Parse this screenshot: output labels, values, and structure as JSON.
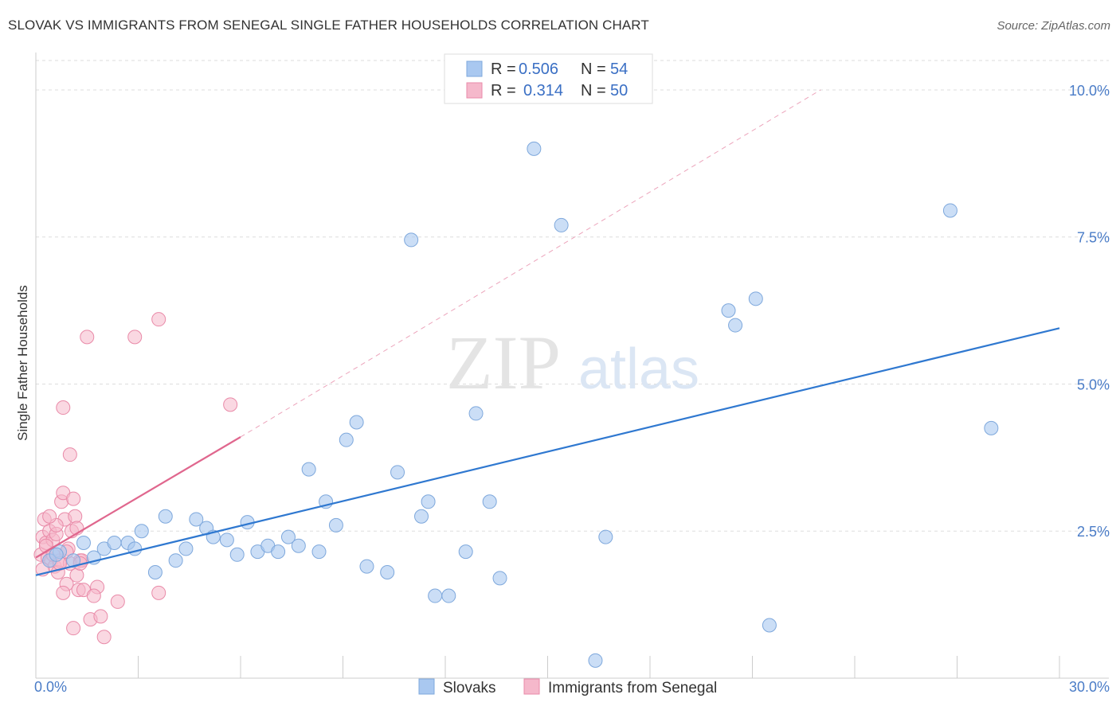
{
  "header": {
    "title": "SLOVAK VS IMMIGRANTS FROM SENEGAL SINGLE FATHER HOUSEHOLDS CORRELATION CHART",
    "source": "Source: ZipAtlas.com"
  },
  "watermark": {
    "zip": "ZIP",
    "atlas": "atlas"
  },
  "legend_top": [
    {
      "r_label": "R =",
      "r_value": "0.506",
      "n_label": "N =",
      "n_value": "54",
      "color": "#a9c8f0"
    },
    {
      "r_label": "R =",
      "r_value": "0.314",
      "n_label": "N =",
      "n_value": "50",
      "color": "#f5b8cb"
    }
  ],
  "colors": {
    "slovak_fill": "#a9c8f0",
    "slovak_stroke": "#7ea8dc",
    "slovak_line": "#2f78d0",
    "senegal_fill": "#f5b8cb",
    "senegal_stroke": "#e98aa8",
    "senegal_line": "#e0678e",
    "grid": "#dddddd",
    "tick_text": "#4a7cc7"
  },
  "chart_data": {
    "type": "scatter",
    "title": "SLOVAK VS IMMIGRANTS FROM SENEGAL SINGLE FATHER HOUSEHOLDS CORRELATION CHART",
    "xlabel": "",
    "ylabel": "Single Father Households",
    "xlim": [
      0,
      30
    ],
    "ylim": [
      0,
      10.5
    ],
    "x_tick_labels": [
      "0.0%",
      "30.0%"
    ],
    "y_ticks": [
      2.5,
      5.0,
      7.5,
      10.0
    ],
    "y_tick_labels": [
      "2.5%",
      "5.0%",
      "7.5%",
      "10.0%"
    ],
    "grid": true,
    "legend_position": "top-center",
    "series": [
      {
        "name": "Slovaks",
        "points": [
          [
            0.4,
            2.0
          ],
          [
            0.7,
            2.15
          ],
          [
            1.4,
            2.3
          ],
          [
            1.7,
            2.05
          ],
          [
            2.0,
            2.2
          ],
          [
            2.3,
            2.3
          ],
          [
            2.7,
            2.3
          ],
          [
            2.9,
            2.2
          ],
          [
            3.1,
            2.5
          ],
          [
            3.5,
            1.8
          ],
          [
            3.8,
            2.75
          ],
          [
            4.1,
            2.0
          ],
          [
            4.4,
            2.2
          ],
          [
            4.7,
            2.7
          ],
          [
            5.0,
            2.55
          ],
          [
            5.2,
            2.4
          ],
          [
            5.6,
            2.35
          ],
          [
            5.9,
            2.1
          ],
          [
            6.2,
            2.65
          ],
          [
            6.5,
            2.15
          ],
          [
            6.8,
            2.25
          ],
          [
            7.1,
            2.15
          ],
          [
            7.4,
            2.4
          ],
          [
            7.7,
            2.25
          ],
          [
            8.0,
            3.55
          ],
          [
            8.3,
            2.15
          ],
          [
            8.5,
            3.0
          ],
          [
            8.8,
            2.6
          ],
          [
            9.1,
            4.05
          ],
          [
            9.4,
            4.35
          ],
          [
            9.7,
            1.9
          ],
          [
            10.3,
            1.8
          ],
          [
            10.6,
            3.5
          ],
          [
            11.0,
            7.45
          ],
          [
            11.3,
            2.75
          ],
          [
            11.5,
            3.0
          ],
          [
            11.7,
            1.4
          ],
          [
            12.1,
            1.4
          ],
          [
            12.6,
            2.15
          ],
          [
            12.9,
            4.5
          ],
          [
            13.3,
            3.0
          ],
          [
            13.6,
            1.7
          ],
          [
            14.6,
            9.0
          ],
          [
            15.4,
            7.7
          ],
          [
            16.7,
            2.4
          ],
          [
            16.4,
            0.3
          ],
          [
            20.3,
            6.25
          ],
          [
            20.5,
            6.0
          ],
          [
            21.1,
            6.45
          ],
          [
            21.5,
            0.9
          ],
          [
            26.8,
            7.95
          ],
          [
            28.0,
            4.25
          ],
          [
            0.6,
            2.1
          ],
          [
            1.1,
            2.0
          ]
        ],
        "trend": {
          "x": [
            0,
            30
          ],
          "y": [
            1.75,
            5.95
          ]
        }
      },
      {
        "name": "Immigrants from Senegal",
        "points": [
          [
            0.15,
            2.1
          ],
          [
            0.2,
            2.4
          ],
          [
            0.25,
            2.7
          ],
          [
            0.3,
            2.3
          ],
          [
            0.35,
            2.05
          ],
          [
            0.4,
            2.5
          ],
          [
            0.45,
            2.0
          ],
          [
            0.5,
            2.35
          ],
          [
            0.55,
            1.9
          ],
          [
            0.6,
            2.45
          ],
          [
            0.65,
            1.8
          ],
          [
            0.7,
            2.0
          ],
          [
            0.75,
            3.0
          ],
          [
            0.8,
            3.15
          ],
          [
            0.85,
            2.7
          ],
          [
            0.9,
            1.6
          ],
          [
            0.95,
            2.2
          ],
          [
            1.0,
            3.8
          ],
          [
            1.05,
            2.5
          ],
          [
            1.1,
            3.05
          ],
          [
            1.15,
            2.75
          ],
          [
            1.2,
            1.75
          ],
          [
            1.25,
            1.5
          ],
          [
            1.3,
            2.0
          ],
          [
            1.35,
            2.0
          ],
          [
            1.4,
            1.5
          ],
          [
            0.8,
            1.45
          ],
          [
            1.0,
            1.95
          ],
          [
            1.5,
            5.8
          ],
          [
            1.6,
            1.0
          ],
          [
            1.8,
            1.55
          ],
          [
            2.0,
            0.7
          ],
          [
            1.7,
            1.4
          ],
          [
            2.4,
            1.3
          ],
          [
            2.9,
            5.8
          ],
          [
            3.6,
            6.1
          ],
          [
            3.6,
            1.45
          ],
          [
            5.7,
            4.65
          ],
          [
            0.8,
            4.6
          ],
          [
            1.1,
            0.85
          ],
          [
            1.9,
            1.05
          ],
          [
            0.2,
            1.85
          ],
          [
            0.3,
            2.25
          ],
          [
            0.5,
            2.1
          ],
          [
            0.6,
            2.6
          ],
          [
            0.7,
            1.95
          ],
          [
            0.9,
            2.15
          ],
          [
            1.2,
            2.55
          ],
          [
            1.3,
            1.95
          ],
          [
            0.4,
            2.75
          ]
        ],
        "trend": {
          "x": [
            0,
            6.0
          ],
          "y": [
            2.05,
            4.1
          ]
        },
        "trend_extension": {
          "x": [
            6.0,
            23.0
          ],
          "y": [
            4.1,
            10.0
          ]
        }
      }
    ]
  },
  "legend_bottom": [
    {
      "label": "Slovaks",
      "color": "#a9c8f0"
    },
    {
      "label": "Immigrants from Senegal",
      "color": "#f5b8cb"
    }
  ]
}
